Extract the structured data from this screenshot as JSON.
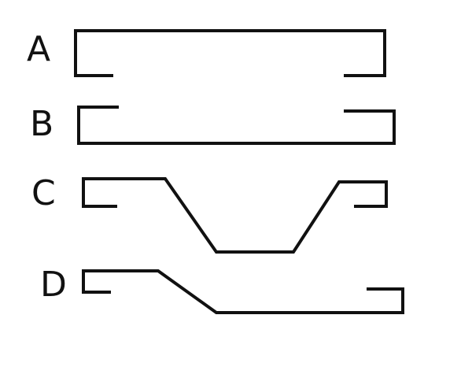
{
  "diagram": {
    "stroke_color": "#111111",
    "background": "#ffffff",
    "options": [
      {
        "label": "A",
        "shape": "bracket-open-bottom"
      },
      {
        "label": "B",
        "shape": "bracket-open-top"
      },
      {
        "label": "C",
        "shape": "trapezoid-dip"
      },
      {
        "label": "D",
        "shape": "step-down-slope"
      }
    ]
  }
}
